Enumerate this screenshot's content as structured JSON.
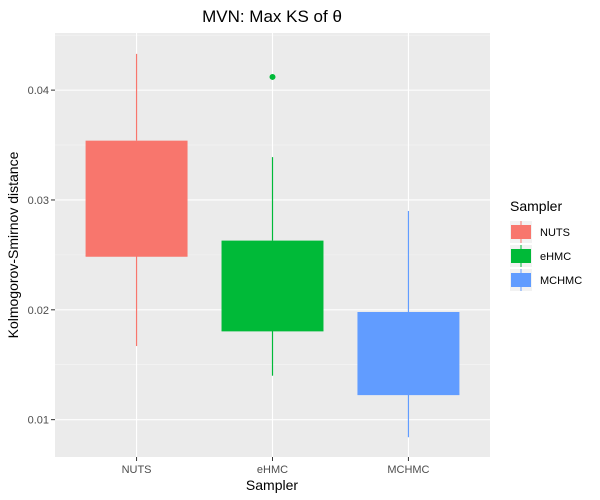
{
  "chart_data": {
    "type": "box",
    "title": "MVN: Max KS of θ",
    "xlabel": "Sampler",
    "ylabel": "Kolmogorov-Smirnov distance",
    "ylim": [
      0.0066,
      0.0452
    ],
    "y_ticks": [
      0.01,
      0.02,
      0.03,
      0.04
    ],
    "y_tick_labels": [
      "0.01",
      "0.02",
      "0.03",
      "0.04"
    ],
    "grid": true,
    "legend_position": "right",
    "legend_title": "Sampler",
    "categories": [
      "NUTS",
      "eHMC",
      "MCHMC"
    ],
    "series": [
      {
        "name": "NUTS",
        "color": "#F8766D",
        "whisker_low": 0.0167,
        "q1": 0.0249,
        "median": 0.0249,
        "q3": 0.0354,
        "whisker_high": 0.0433,
        "outliers": []
      },
      {
        "name": "eHMC",
        "color": "#00BA38",
        "whisker_low": 0.014,
        "q1": 0.0181,
        "median": 0.0181,
        "q3": 0.0263,
        "whisker_high": 0.0339,
        "outliers": [
          0.0412
        ]
      },
      {
        "name": "MCHMC",
        "color": "#619CFF",
        "whisker_low": 0.0084,
        "q1": 0.0123,
        "median": 0.0123,
        "q3": 0.0198,
        "whisker_high": 0.029,
        "outliers": []
      }
    ]
  }
}
